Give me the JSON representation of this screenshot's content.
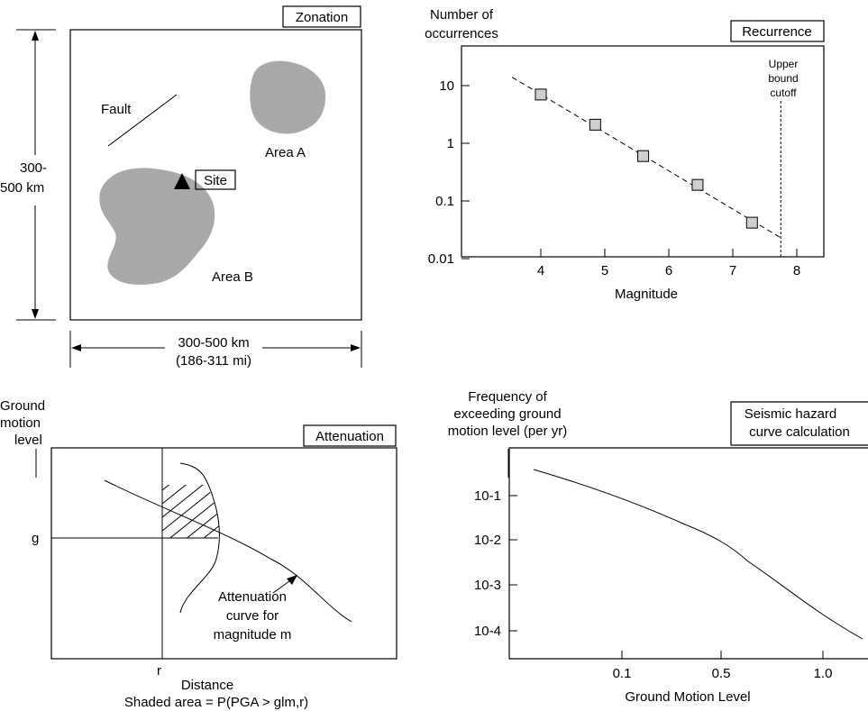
{
  "zonation": {
    "title": "Zonation",
    "fault_label": "Fault",
    "area_a_label": "Area A",
    "area_b_label": "Area B",
    "site_label": "Site",
    "height_label_line1": "300-",
    "height_label_line2": "500 km",
    "width_label_line1": "300-500 km",
    "width_label_line2": "(186-311 mi)",
    "area_color": "#a9a9a9"
  },
  "recurrence": {
    "title": "Recurrence",
    "ylabel_line1": "Number of",
    "ylabel_line2": "occurrences",
    "xlabel": "Magnitude",
    "cutoff_line1": "Upper",
    "cutoff_line2": "bound",
    "cutoff_line3": "cutoff",
    "chart_data": {
      "type": "scatter",
      "x": [
        4.0,
        4.85,
        5.6,
        6.45,
        7.3
      ],
      "y": [
        7,
        2.1,
        0.6,
        0.19,
        0.042
      ],
      "trend_line": {
        "x": [
          3.55,
          7.75
        ],
        "y": [
          14,
          0.023
        ]
      },
      "cutoff_x": 7.75,
      "xlim": [
        3.2,
        8.3
      ],
      "ylim": [
        0.01,
        20
      ],
      "yscale": "log",
      "xticks": [
        "4",
        "5",
        "6",
        "7",
        "8"
      ],
      "yticks": [
        "10",
        "1",
        "0.1",
        "0.01"
      ],
      "grid": false
    }
  },
  "attenuation": {
    "title": "Attenuation",
    "ylabel_line1": "Ground",
    "ylabel_line2": "motion",
    "ylabel_line3": "level",
    "g_label": "g",
    "r_label": "r",
    "xlabel": "Distance",
    "caption": "Shaded area = P(PGA > glm,r)",
    "curve_label_line1": "Attenuation",
    "curve_label_line2": "curve for",
    "curve_label_line3": "magnitude m"
  },
  "hazard": {
    "title_line1": "Seismic hazard",
    "title_line2": "curve calculation",
    "ylabel_line1": "Frequency of",
    "ylabel_line2": "exceeding ground",
    "ylabel_line3": "motion level (per yr)",
    "xlabel": "Ground Motion Level",
    "chart_data": {
      "type": "line",
      "yscale": "log",
      "yticks": [
        "10-1",
        "10-2",
        "10-3",
        "10-4"
      ],
      "xticks": [
        "0.1",
        "0.5",
        "1.0"
      ],
      "grid": false
    }
  }
}
